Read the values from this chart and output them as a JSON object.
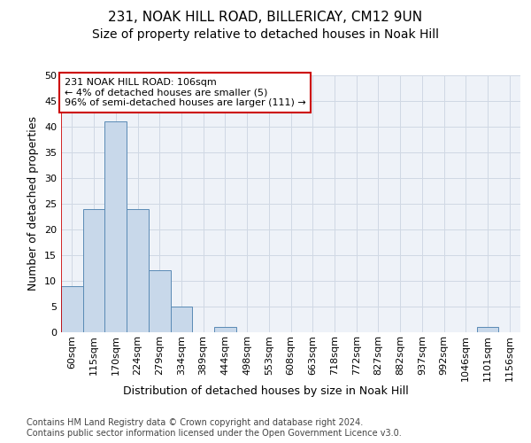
{
  "title1": "231, NOAK HILL ROAD, BILLERICAY, CM12 9UN",
  "title2": "Size of property relative to detached houses in Noak Hill",
  "xlabel": "Distribution of detached houses by size in Noak Hill",
  "ylabel": "Number of detached properties",
  "bar_labels": [
    "60sqm",
    "115sqm",
    "170sqm",
    "224sqm",
    "279sqm",
    "334sqm",
    "389sqm",
    "444sqm",
    "498sqm",
    "553sqm",
    "608sqm",
    "663sqm",
    "718sqm",
    "772sqm",
    "827sqm",
    "882sqm",
    "937sqm",
    "992sqm",
    "1046sqm",
    "1101sqm",
    "1156sqm"
  ],
  "bar_values": [
    9,
    24,
    41,
    24,
    12,
    5,
    0,
    1,
    0,
    0,
    0,
    0,
    0,
    0,
    0,
    0,
    0,
    0,
    0,
    1,
    0
  ],
  "bar_color": "#c8d8ea",
  "bar_edge_color": "#5a8ab5",
  "annotation_text": "231 NOAK HILL ROAD: 106sqm\n← 4% of detached houses are smaller (5)\n96% of semi-detached houses are larger (111) →",
  "annotation_box_color": "#ffffff",
  "annotation_box_edge_color": "#cc0000",
  "vline_color": "#cc0000",
  "vline_x": -0.5,
  "ylim": [
    0,
    50
  ],
  "yticks": [
    0,
    5,
    10,
    15,
    20,
    25,
    30,
    35,
    40,
    45,
    50
  ],
  "grid_color": "#d0d8e4",
  "background_color": "#eef2f8",
  "footer_text": "Contains HM Land Registry data © Crown copyright and database right 2024.\nContains public sector information licensed under the Open Government Licence v3.0.",
  "title_fontsize": 11,
  "subtitle_fontsize": 10,
  "axis_label_fontsize": 9,
  "tick_fontsize": 8,
  "footer_fontsize": 7
}
